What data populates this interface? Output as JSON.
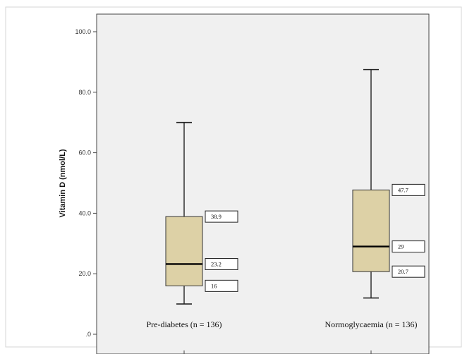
{
  "chart_data": {
    "type": "box",
    "ylabel": "Vitamin D (nmol/L)",
    "ylim": [
      0,
      100
    ],
    "yticks": [
      0,
      20,
      40,
      60,
      80,
      100
    ],
    "ytick_labels": [
      ".0",
      "20.0",
      "40.0",
      "60.0",
      "80.0",
      "100.0"
    ],
    "grid": false,
    "box_color": "#ddd1a6",
    "groups": [
      {
        "label": "Pre-diabetes (n = 136)",
        "min": 10,
        "q1": 16,
        "median": 23.2,
        "q3": 38.9,
        "max": 70,
        "annotations": [
          {
            "text": "38.9",
            "value": 38.9
          },
          {
            "text": "23.2",
            "value": 23.2
          },
          {
            "text": "16",
            "value": 16
          }
        ]
      },
      {
        "label": "Normoglycaemia (n = 136)",
        "min": 12,
        "q1": 20.7,
        "median": 29,
        "q3": 47.7,
        "max": 87.5,
        "annotations": [
          {
            "text": "47.7",
            "value": 47.7
          },
          {
            "text": "29",
            "value": 29
          },
          {
            "text": "20.7",
            "value": 20.7
          }
        ]
      }
    ]
  }
}
